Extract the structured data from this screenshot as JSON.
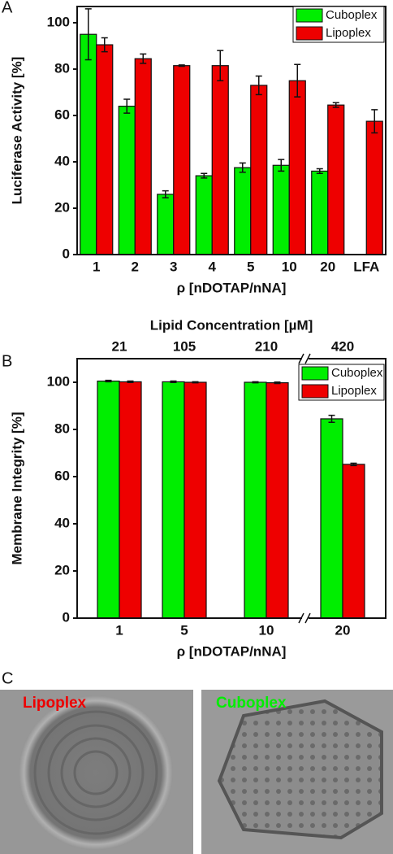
{
  "chart_data": [
    {
      "type": "bar",
      "panel_label": "A",
      "ylabel": "Luciferase Activity [%]",
      "xlabel": "ρ [nDOTAP/nNA]",
      "categories": [
        "1",
        "2",
        "3",
        "4",
        "5",
        "10",
        "20",
        "LFA"
      ],
      "series": [
        {
          "name": "Cuboplex",
          "color": "#00ee00",
          "values": [
            95,
            64,
            26,
            34,
            37.5,
            38.5,
            36,
            null
          ],
          "errors": [
            11,
            3,
            1.5,
            1,
            2,
            2.5,
            1,
            null
          ]
        },
        {
          "name": "Lipoplex",
          "color": "#ee0000",
          "values": [
            90.5,
            84.5,
            81.5,
            81.5,
            73,
            75,
            64.5,
            57.5
          ],
          "errors": [
            3,
            2,
            0.3,
            6.5,
            4,
            7,
            1,
            5
          ]
        }
      ],
      "ylim": [
        0,
        107
      ],
      "yticks": [
        0,
        20,
        40,
        60,
        80,
        100
      ],
      "legend": "upper right"
    },
    {
      "type": "bar",
      "panel_label": "B",
      "ylabel": "Membrane Integrity [%]",
      "xlabel": "ρ [nDOTAP/nNA]",
      "top_axis": {
        "label": "Lipid Concentration [µM]",
        "ticks": [
          21,
          105,
          210,
          420
        ]
      },
      "categories": [
        "1",
        "5",
        "10",
        "20"
      ],
      "series": [
        {
          "name": "Cuboplex",
          "color": "#00ee00",
          "values": [
            100.5,
            100.2,
            100,
            84.5
          ],
          "errors": [
            0.3,
            0.3,
            0.2,
            1.5
          ]
        },
        {
          "name": "Lipoplex",
          "color": "#ee0000",
          "values": [
            100.2,
            100,
            99.8,
            65.2
          ],
          "errors": [
            0.3,
            0.2,
            0.3,
            0.5
          ]
        }
      ],
      "ylim": [
        0,
        110
      ],
      "yticks": [
        0,
        20,
        40,
        60,
        80,
        100
      ],
      "legend": "upper right"
    }
  ],
  "micrographs": {
    "panel_label": "C",
    "labels": [
      "Lipoplex",
      "Cuboplex"
    ]
  }
}
